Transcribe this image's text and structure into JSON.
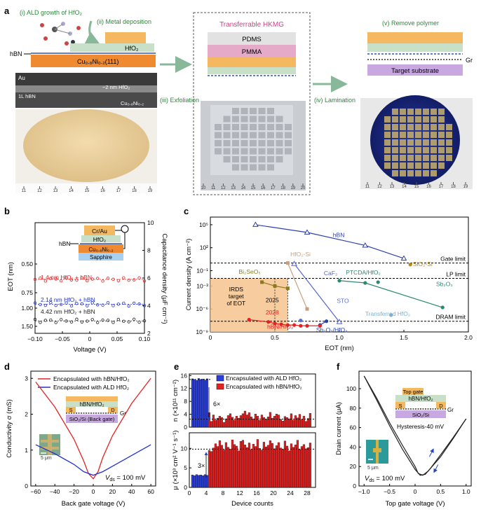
{
  "panels": {
    "a": {
      "label": "a",
      "step1": "(i) ALD growth of HfO₂",
      "step2": "(ii) Metal deposition",
      "hfo2": "HfO₂",
      "hbn": "hBN",
      "cuni": "Cu₀.₈Ni₀.₂(111)",
      "tem_au": "Au",
      "tem_hfo2": "~2 nm HfO₂",
      "tem_hbn": "1L hBN",
      "tem_cuni": "Cu₀.₈Ni₀.₂",
      "step3": "(iii) Exfoliation",
      "hkmg_title": "Transferrable HKMG",
      "pdms": "PDMS",
      "pmma": "PMMA",
      "step4": "(iv) Lamination",
      "step5": "(v) Remove polymer",
      "gr": "Gr",
      "target": "Target substrate",
      "ruler_left": [
        "11",
        "12",
        "13",
        "14",
        "15",
        "16",
        "17",
        "18",
        "19"
      ],
      "ruler_mid": [
        "10",
        "11",
        "12",
        "13",
        "14",
        "15",
        "16",
        "17",
        "18",
        "19",
        "20"
      ],
      "ruler_right": [
        "11",
        "12",
        "13",
        "14",
        "15",
        "16",
        "17",
        "18",
        "19"
      ]
    },
    "b": {
      "label": "b",
      "ylabel_left": "EOT (nm)",
      "ylabel_right": "Capacitance density (μF cm⁻²)",
      "xlabel": "Voltage (V)",
      "xticks": [
        "−0.10",
        "−0.05",
        "0",
        "0.05",
        "0.10"
      ],
      "yticks_left": [
        "0.50",
        "0.75",
        "1.00",
        "1.50"
      ],
      "yticks_right": [
        "10",
        "8",
        "6",
        "4",
        "2"
      ],
      "stack": [
        "Cr/Au",
        "HfO₂",
        "Cu₀.₈Ni₀.₂",
        "Sapphire"
      ],
      "stack_hbn": "hBN",
      "chart_data": {
        "type": "scatter",
        "xlabel": "Voltage (V)",
        "ylabel": "Capacitance density (μF cm⁻²)",
        "xlim": [
          -0.1,
          0.1
        ],
        "ylim": [
          2,
          10
        ],
        "series": [
          {
            "name": "1.4 nm HfO₂ + hBN",
            "color": "#e52222",
            "value": 5.9
          },
          {
            "name": "2.14 nm HfO₂ + hBN",
            "color": "#2233cc",
            "value": 4.1
          },
          {
            "name": "4.42 nm HfO₂ + hBN",
            "color": "#222222",
            "value": 2.9
          }
        ]
      }
    },
    "c": {
      "label": "c",
      "ylabel": "Current density (A cm⁻²)",
      "xlabel": "EOT (nm)",
      "xticks": [
        "0",
        "0.5",
        "1.0",
        "1.5",
        "2.0"
      ],
      "yticks": [
        "10⁵",
        "10²",
        "10⁻¹",
        "10⁻³",
        "10⁻⁶",
        "10⁻⁹"
      ],
      "gate_limit": "Gate limit",
      "lp_limit": "LP limit",
      "dram_limit": "DRAM limit",
      "irds": [
        "IRDS",
        "target",
        "of EOT"
      ],
      "y2025": "2025",
      "y2028": "2028",
      "chart_data": {
        "type": "line",
        "xlabel": "EOT (nm)",
        "ylabel": "Current density (A cm⁻²)",
        "xlim": [
          0,
          2.0
        ],
        "ylim_log10": [
          -9,
          6
        ],
        "series": [
          {
            "name": "hBN",
            "color": "#2a3fb0",
            "x": [
              0.35,
              0.75,
              1.2,
              1.5
            ],
            "log10y": [
              5,
              4,
              2.3,
              0.6
            ]
          },
          {
            "name": "SiO₂-Si",
            "color": "#b8860b",
            "x": [
              1.55
            ],
            "log10y": [
              -0.2
            ]
          },
          {
            "name": "HfO₂-Si",
            "color": "#c8a080",
            "x": [
              0.6,
              0.75
            ],
            "log10y": [
              0,
              -6
            ]
          },
          {
            "name": "CaF₂",
            "color": "#5566cc",
            "x": [
              0.65,
              1.0
            ],
            "log10y": [
              -0.1,
              -7.7
            ]
          },
          {
            "name": "Bi₂SeO₅",
            "color": "#8b7a20",
            "x": [
              0.4,
              0.5,
              0.6
            ],
            "log10y": [
              -2.5,
              -3,
              -3.3
            ]
          },
          {
            "name": "PTCDA/HfO₂",
            "color": "#2a8a70",
            "x": [
              1.0,
              1.2,
              1.8
            ],
            "log10y": [
              -2.3,
              -2.6,
              -5.8
            ]
          },
          {
            "name": "STO",
            "color": "#5a6fd0",
            "x": [
              0.7
            ],
            "log10y": [
              -7.5
            ]
          },
          {
            "name": "Sb₂O₃",
            "color": "#2a8a70",
            "x": [
              1.3
            ],
            "log10y": [
              -2.5
            ]
          },
          {
            "name": "Sb₂O₃/HfO₂",
            "color": "#2a3fb0",
            "x": [
              0.85,
              0.9
            ],
            "log10y": [
              -8.1,
              -7.6
            ]
          },
          {
            "name": "Transferred HfO₂",
            "color": "#7ab0d0",
            "x": [
              1.4
            ],
            "log10y": [
              -6.8
            ]
          },
          {
            "name": "hBN/HfO₂",
            "color": "#e52222",
            "x": [
              0.3,
              0.45,
              0.5,
              0.55,
              0.6,
              0.65,
              0.7,
              0.75,
              0.85
            ],
            "log10y": [
              -7.4,
              -7.7,
              -7.9,
              -8.0,
              -8.1,
              -8.1,
              -8.2,
              -8.2,
              -8.2
            ]
          }
        ]
      }
    },
    "d": {
      "label": "d",
      "ylabel": "Conductivity σ (mS)",
      "xlabel": "Back gate voltage (V)",
      "xticks": [
        "−60",
        "−40",
        "−20",
        "0",
        "20",
        "40",
        "60"
      ],
      "yticks": [
        "0",
        "1",
        "2",
        "3"
      ],
      "legend": [
        "Encapsulated with hBN/HfO₂",
        "Encapsulated with ALD HfO₂"
      ],
      "inset_stack": [
        "hBN/HfO₂",
        "SiO₂/Si (Back gate)"
      ],
      "s": "S",
      "d": "D",
      "gr": "Gr",
      "scale": "5 μm",
      "vds": "V",
      "vds_sub": "ds",
      "vds_val": " = 100 mV",
      "chart_data": {
        "type": "line",
        "xlabel": "Back gate voltage (V)",
        "ylabel": "Conductivity σ (mS)",
        "xlim": [
          -65,
          65
        ],
        "ylim": [
          0,
          3.2
        ],
        "series": [
          {
            "name": "Encapsulated with hBN/HfO₂",
            "color": "#e52222",
            "x": [
              -60,
              -40,
              -20,
              -10,
              -5,
              0,
              5,
              10,
              20,
              40,
              60
            ],
            "y": [
              2.9,
              2.2,
              1.3,
              0.7,
              0.35,
              0.2,
              0.4,
              0.8,
              1.4,
              2.3,
              3.0
            ]
          },
          {
            "name": "Encapsulated with ALD HfO₂",
            "color": "#2233cc",
            "x": [
              -60,
              -40,
              -20,
              -10,
              0,
              10,
              20,
              40,
              60
            ],
            "y": [
              1.15,
              0.9,
              0.6,
              0.4,
              0.3,
              0.4,
              0.55,
              0.85,
              1.15
            ]
          }
        ]
      }
    },
    "e": {
      "label": "e",
      "ylabel_top": "n (×10¹¹ cm⁻²)",
      "ylabel_bot": "μ (×10³ cm² V⁻¹ s⁻¹)",
      "xlabel": "Device counts",
      "xticks": [
        "0",
        "4",
        "8",
        "12",
        "16",
        "20",
        "24",
        "28"
      ],
      "yticks_top": [
        "0",
        "4",
        "8",
        "12",
        "16"
      ],
      "yticks_bot": [
        "0",
        "5",
        "10"
      ],
      "legend": [
        "Encapsulated with ALD HfO₂",
        "Encapsulated with hBN/HfO₂"
      ],
      "ratio_top": "6×",
      "ratio_bot": "3×",
      "chart_data": {
        "type": "bar",
        "xlabel": "Device counts",
        "series": [
          {
            "name": "Encapsulated with ALD HfO₂",
            "color": "#2a3fe0",
            "n": [
              15.0,
              14.8,
              14.5,
              15.1,
              14.7,
              14.9,
              14.6,
              15.0
            ],
            "mu": [
              3.2,
              3.0,
              3.3,
              3.1,
              3.2,
              3.0,
              3.3,
              3.1
            ]
          },
          {
            "name": "Encapsulated with hBN/HfO₂",
            "color": "#e52222",
            "n": [
              4.5,
              1.8,
              3.8,
              2.2,
              2.8,
              3.4,
              3.0,
              1.5,
              2.6,
              3.6,
              4.2,
              3.1,
              2.2,
              3.4,
              2.8,
              3.6,
              4.2,
              5.0,
              3.8,
              4.5,
              3.2,
              2.6,
              4.1,
              3.4,
              2.1,
              3.8,
              3.0,
              2.5,
              3.2,
              4.6,
              2.8,
              3.4,
              4.1,
              3.8,
              2.4,
              1.9,
              3.3,
              3.0,
              2.6,
              4.2,
              2.2,
              3.6,
              2.9,
              4.0,
              2.3,
              3.4,
              1.8,
              2.7,
              4.3
            ],
            "mu": [
              9.5,
              9.2,
              10.1,
              11.2,
              10.5,
              12.0,
              10.8,
              9.6,
              11.5,
              10.3,
              9.8,
              12.2,
              11.0,
              10.6,
              9.4,
              11.8,
              12.1,
              10.9,
              10.2,
              11.4,
              9.7,
              11.1,
              10.5,
              12.3,
              10.0,
              9.6,
              11.6,
              10.4,
              10.8,
              12.0,
              11.3,
              9.9,
              10.7,
              11.5,
              10.1,
              9.8,
              11.9,
              10.6,
              9.4,
              11.2,
              10.3,
              10.9,
              12.1,
              9.7,
              10.5,
              11.0,
              9.9,
              10.2,
              11.4
            ]
          }
        ],
        "ylim_n": [
          0,
          16.5
        ],
        "ylim_mu": [
          0,
          14
        ],
        "ref_n": 2.5,
        "ref_mu": 9.8
      }
    },
    "f": {
      "label": "f",
      "ylabel": "Drain current (μA)",
      "xlabel": "Top gate voltage (V)",
      "xticks": [
        "−1.0",
        "−0.5",
        "0",
        "0.5",
        "1.0"
      ],
      "yticks": [
        "0",
        "20",
        "40",
        "60",
        "80",
        "100"
      ],
      "inset_stack": [
        "Top gate",
        "hBN/HfO₂",
        "SiO₂/Si"
      ],
      "s": "S",
      "d": "D",
      "gr": "Gr",
      "hysteresis": "Hysteresis-40 mV",
      "scale": "5 μm",
      "vds": "V",
      "vds_sub": "ds",
      "vds_val": " = 100 mV",
      "chart_data": {
        "type": "line",
        "xlabel": "Top gate voltage (V)",
        "ylabel": "Drain current (μA)",
        "xlim": [
          -1.1,
          1.1
        ],
        "ylim": [
          0,
          118
        ],
        "series": [
          {
            "name": "forward",
            "color": "#222222",
            "x": [
              -1.0,
              -0.75,
              -0.5,
              -0.25,
              0,
              0.1,
              0.2,
              0.3,
              0.5,
              0.75,
              1.0
            ],
            "y": [
              113,
              88,
              62,
              38,
              17,
              11,
              12,
              18,
              32,
              50,
              69
            ]
          },
          {
            "name": "reverse",
            "color": "#222222",
            "x": [
              -1.0,
              -0.75,
              -0.5,
              -0.25,
              0,
              0.06,
              0.15,
              0.25,
              0.5,
              0.75,
              1.0
            ],
            "y": [
              113,
              90,
              65,
              42,
              20,
              13,
              11,
              15,
              30,
              49,
              69
            ]
          }
        ]
      }
    }
  }
}
